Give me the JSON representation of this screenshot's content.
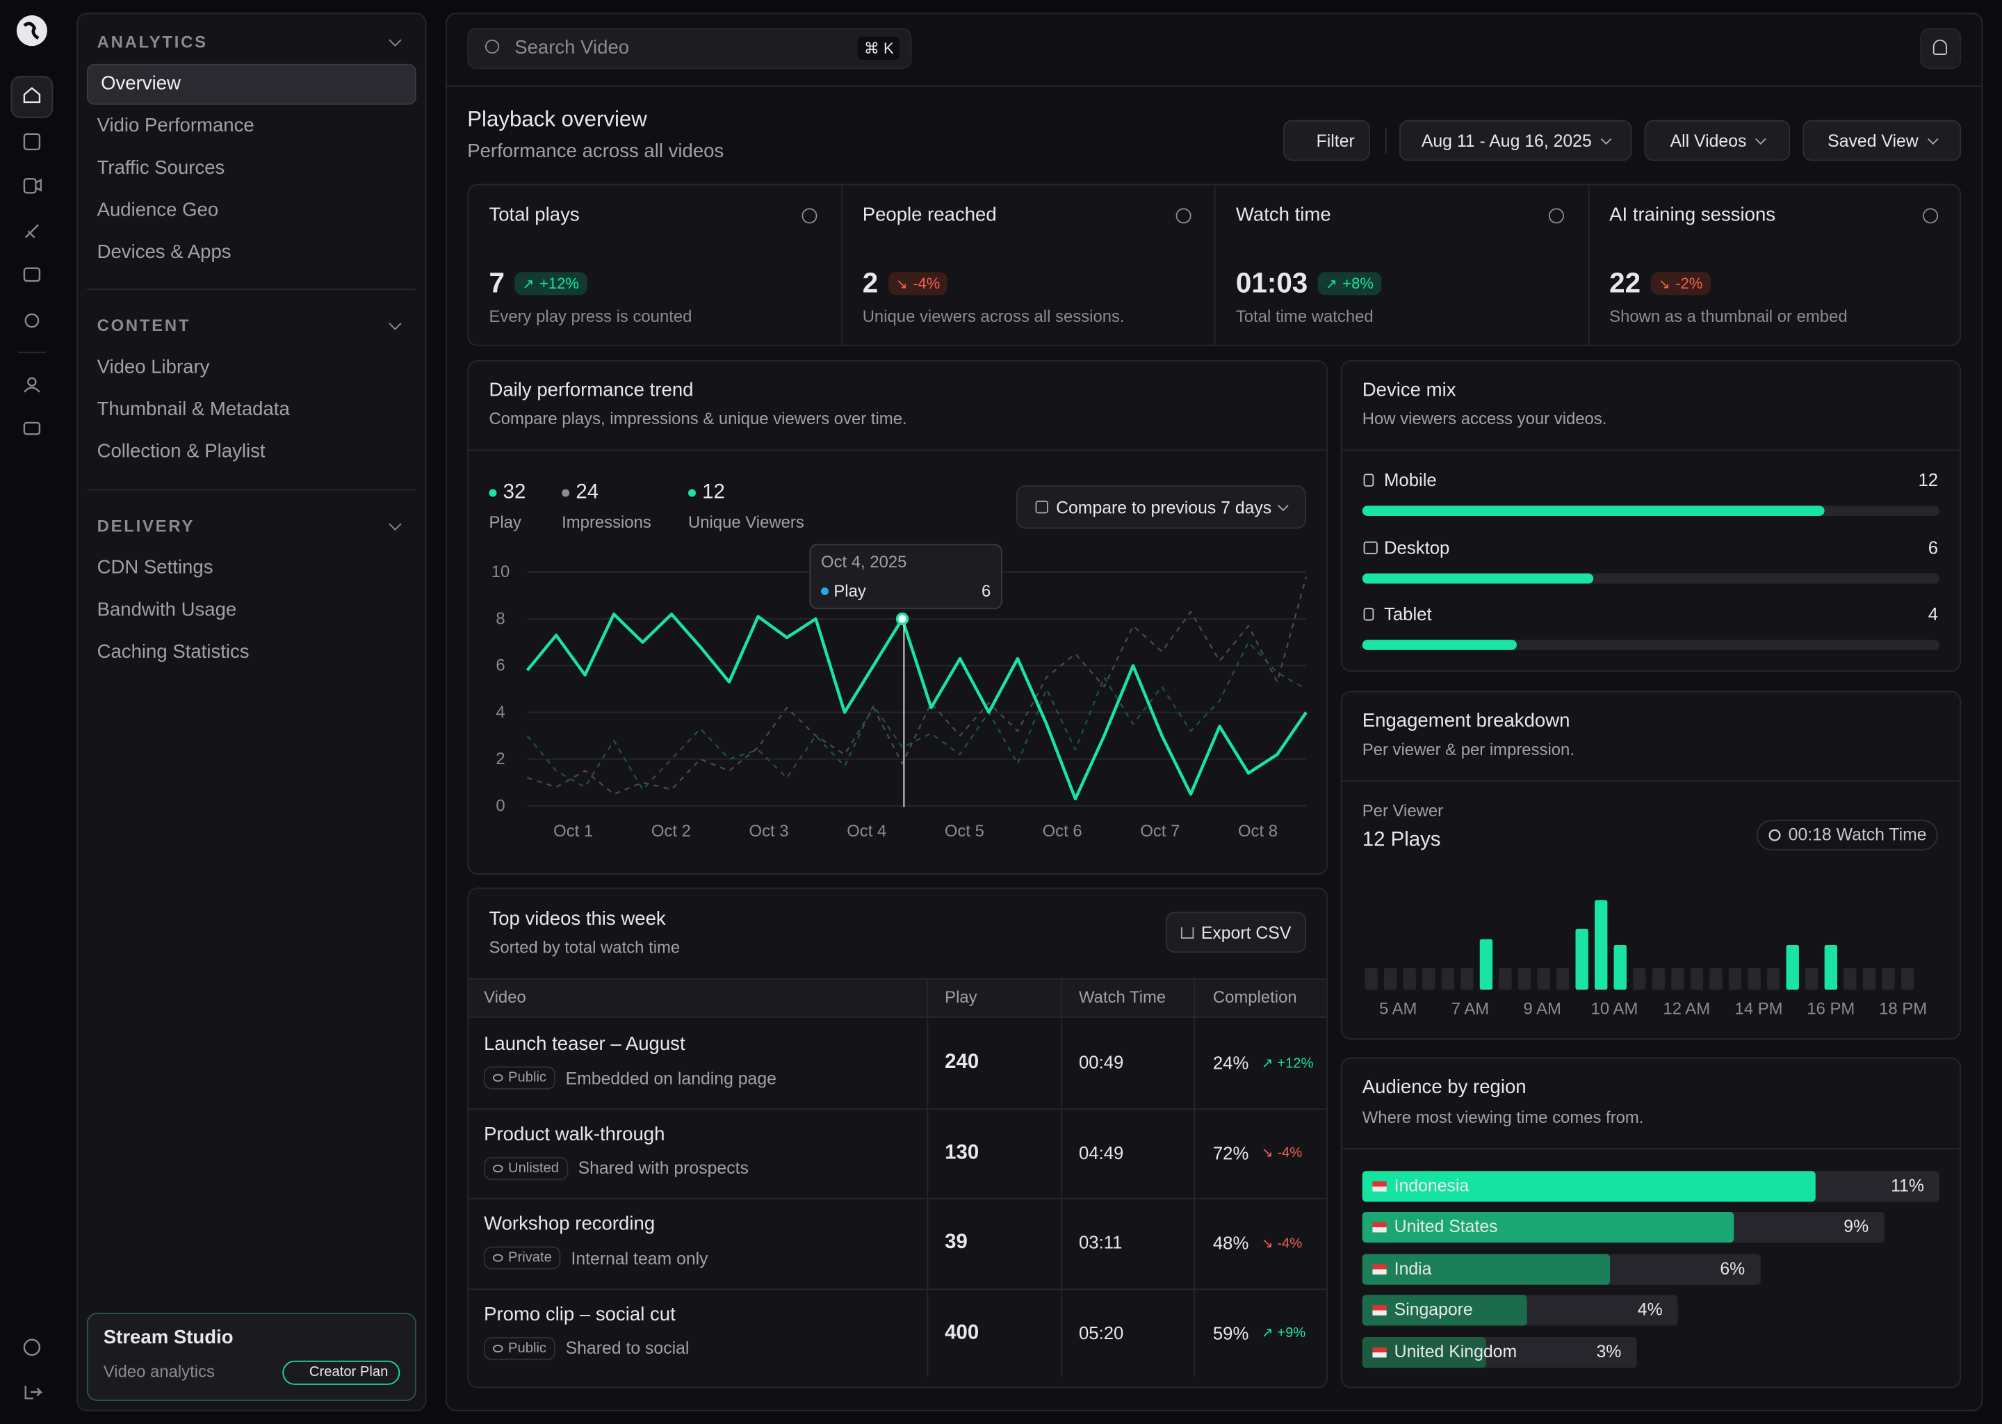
{
  "sidebar": {
    "sections": [
      {
        "title": "ANALYTICS",
        "items": [
          "Overview",
          "Vidio Performance",
          "Traffic Sources",
          "Audience Geo",
          "Devices & Apps"
        ]
      },
      {
        "title": "CONTENT",
        "items": [
          "Video Library",
          "Thumbnail & Metadata",
          "Collection & Playlist"
        ]
      },
      {
        "title": "DELIVERY",
        "items": [
          "CDN Settings",
          "Bandwith Usage",
          "Caching Statistics"
        ]
      }
    ],
    "footer": {
      "title": "Stream Studio",
      "subtitle": "Video analytics",
      "badge": "Creator Plan"
    }
  },
  "topbar": {
    "search": "Search Video",
    "shortcut": "⌘ K"
  },
  "header": {
    "title": "Playback overview",
    "subtitle": "Performance across all videos",
    "buttons": [
      "Filter",
      "Aug 11 - Aug 16, 2025",
      "All Videos",
      "Saved View"
    ]
  },
  "kpis": [
    {
      "label": "Total plays",
      "value": 7,
      "change": "+12%",
      "direction": "up",
      "note": "Every play press is counted"
    },
    {
      "label": "People reached",
      "value": 2,
      "change": "-4%",
      "direction": "down",
      "note": "Unique viewers across all sessions."
    },
    {
      "label": "Watch time",
      "value": "01:03",
      "change": "+8%",
      "direction": "up",
      "note": "Total time watched"
    },
    {
      "label": "AI training sessions",
      "value": 22,
      "change": "-2%",
      "direction": "down",
      "note": "Shown as a thumbnail or embed"
    }
  ],
  "trend": {
    "title": "Daily performance trend",
    "subtitle": "Compare plays, impressions & unique viewers over time.",
    "compare": "Compare to previous 7 days",
    "legend": [
      {
        "value": 32,
        "label": "Play",
        "color": "#19e3a5"
      },
      {
        "value": 24,
        "label": "Impressions",
        "color": "#8d8d94"
      },
      {
        "value": 12,
        "label": "Unique Viewers",
        "color": "#19e3a5"
      }
    ],
    "tooltip": {
      "date": "Oct 4, 2025",
      "series": "Play",
      "value": 6
    },
    "categories": [
      "Oct 1",
      "Oct 2",
      "Oct 3",
      "Oct 4",
      "Oct 5",
      "Oct 6",
      "Oct 7",
      "Oct 8"
    ],
    "ylim": [
      0,
      10
    ],
    "yticks": [
      0,
      2,
      4,
      6,
      8,
      10
    ],
    "grid": true,
    "series": [
      {
        "name": "Play",
        "color": "#19e3a5",
        "values": [
          5.8,
          7.3,
          5.6,
          8.2,
          7,
          8.2,
          6.8,
          5.3,
          8.1,
          7.2,
          8,
          4,
          6,
          8,
          4.2,
          6.3,
          4,
          6.3,
          3.5,
          0.3,
          3,
          6,
          3,
          0.5,
          3.4,
          1.4,
          2.2,
          4
        ]
      },
      {
        "name": "Impressions",
        "color": "#4a4a52",
        "values": [
          1.2,
          0.8,
          1.5,
          0.5,
          1,
          0.7,
          2,
          1.5,
          2.5,
          4.2,
          3,
          2.2,
          4.2,
          1.8,
          4.4,
          3,
          4.4,
          3.2,
          5.5,
          6.5,
          5.1,
          7.7,
          6.6,
          8.3,
          6.2,
          7.7,
          5.3,
          9.8
        ]
      },
      {
        "name": "Unique Viewers",
        "color": "#1d5446",
        "values": [
          3,
          1.5,
          0.8,
          2.8,
          0.7,
          2,
          3.3,
          2,
          2.4,
          1.2,
          3,
          1.7,
          4.3,
          2.5,
          3.1,
          2.2,
          4,
          1.8,
          5,
          2.4,
          5.5,
          3.5,
          5.1,
          3.2,
          4.5,
          7,
          5.7,
          5
        ]
      }
    ]
  },
  "top_videos": {
    "title": "Top videos this week",
    "subtitle": "Sorted by total watch time",
    "export": "Export CSV",
    "columns": [
      "Video",
      "Play",
      "Watch Time",
      "Completion"
    ],
    "rows": [
      {
        "title": "Launch teaser – August",
        "visibility": "Public",
        "note": "Embedded on landing page",
        "play": 240,
        "watch_time": "00:49",
        "completion": "24%",
        "change": "+12%",
        "direction": "up"
      },
      {
        "title": "Product walk-through",
        "visibility": "Unlisted",
        "note": "Shared with prospects",
        "play": 130,
        "watch_time": "04:49",
        "completion": "72%",
        "change": "-4%",
        "direction": "down"
      },
      {
        "title": "Workshop recording",
        "visibility": "Private",
        "note": "Internal team only",
        "play": 39,
        "watch_time": "03:11",
        "completion": "48%",
        "change": "-4%",
        "direction": "down"
      },
      {
        "title": "Promo clip – social cut",
        "visibility": "Public",
        "note": "Shared to social",
        "play": 400,
        "watch_time": "05:20",
        "completion": "59%",
        "change": "+9%",
        "direction": "up"
      }
    ]
  },
  "device_mix": {
    "title": "Device mix",
    "subtitle": "How viewers access your videos.",
    "xlim": [
      0,
      15
    ],
    "color": "#19e3a5",
    "items": [
      {
        "name": "Mobile",
        "value": 12
      },
      {
        "name": "Desktop",
        "value": 6
      },
      {
        "name": "Tablet",
        "value": 4
      }
    ]
  },
  "engagement": {
    "title": "Engagement breakdown",
    "subtitle": "Per viewer & per impression.",
    "label": "Per Viewer",
    "plays": "12 Plays",
    "watch_time": "00:18 Watch Time",
    "ylim": [
      0,
      10
    ],
    "categories": [
      "5 AM",
      "7 AM",
      "9 AM",
      "10 AM",
      "12 AM",
      "14 PM",
      "16 PM",
      "18 PM"
    ],
    "values": [
      1.9,
      1.9,
      1.9,
      1.9,
      1.9,
      1.9,
      4.4,
      1.9,
      1.9,
      1.9,
      1.9,
      5.3,
      7.8,
      3.9,
      1.9,
      1.9,
      1.9,
      1.9,
      1.9,
      1.9,
      1.9,
      1.9,
      3.9,
      1.9,
      3.9,
      1.9,
      1.9,
      1.9,
      1.9
    ],
    "colors": [
      "#26262c",
      "#26262c",
      "#26262c",
      "#26262c",
      "#26262c",
      "#26262c",
      "#19e3a5",
      "#26262c",
      "#26262c",
      "#26262c",
      "#26262c",
      "#19e3a5",
      "#19e3a5",
      "#19e3a5",
      "#26262c",
      "#26262c",
      "#26262c",
      "#26262c",
      "#26262c",
      "#26262c",
      "#26262c",
      "#26262c",
      "#19e3a5",
      "#26262c",
      "#19e3a5",
      "#26262c",
      "#26262c",
      "#26262c",
      "#26262c"
    ]
  },
  "regions": {
    "title": "Audience by region",
    "subtitle": "Where most viewing time comes from.",
    "xlim": [
      0,
      14
    ],
    "items": [
      {
        "name": "Indonesia",
        "value": 11,
        "label": "11%",
        "color": "#14e3a1"
      },
      {
        "name": "United States",
        "value": 9,
        "label": "9%",
        "color": "#1aa774"
      },
      {
        "name": "India",
        "value": 6,
        "label": "6%",
        "color": "#1b7f5a"
      },
      {
        "name": "Singapore",
        "value": 4,
        "label": "4%",
        "color": "#1c6b4d"
      },
      {
        "name": "United Kingdom",
        "value": 3,
        "label": "3%",
        "color": "#1d5c43"
      }
    ]
  }
}
